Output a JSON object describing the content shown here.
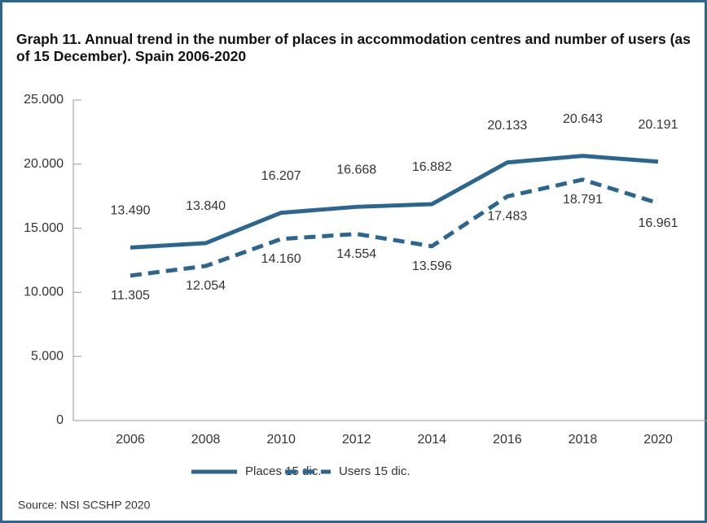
{
  "chart_data": {
    "type": "line",
    "title": "Graph 11. Annual trend in the number of places in accommodation centres and number of users (as of 15 December). Spain 2006-2020",
    "categories": [
      "2006",
      "2008",
      "2010",
      "2012",
      "2014",
      "2016",
      "2018",
      "2020"
    ],
    "series": [
      {
        "name": "Places 15 dic.",
        "color": "#2b6690",
        "dash": false,
        "values": [
          13490,
          13840,
          16207,
          16668,
          16882,
          20133,
          20643,
          20191
        ],
        "value_labels": [
          "13.490",
          "13.840",
          "16.207",
          "16.668",
          "16.882",
          "20.133",
          "20.643",
          "20.191"
        ]
      },
      {
        "name": "Users 15 dic.",
        "color": "#2b6690",
        "dash": true,
        "values": [
          11305,
          12054,
          14160,
          14554,
          13596,
          17483,
          18791,
          16961
        ],
        "value_labels": [
          "11.305",
          "12.054",
          "14.160",
          "14.554",
          "13.596",
          "17.483",
          "18.791",
          "16.961"
        ]
      }
    ],
    "ylim": [
      0,
      25000
    ],
    "yticks": [
      0,
      {
        "value": 5000,
        "label": "5.000"
      },
      {
        "value": 10000,
        "label": "10.000"
      },
      {
        "value": 15000,
        "label": "15.000"
      },
      {
        "value": 20000,
        "label": "20.000"
      },
      {
        "value": 25000,
        "label": "25.000"
      }
    ],
    "legend": "bottom",
    "source": "Source: NSI SCSHP 2020"
  }
}
